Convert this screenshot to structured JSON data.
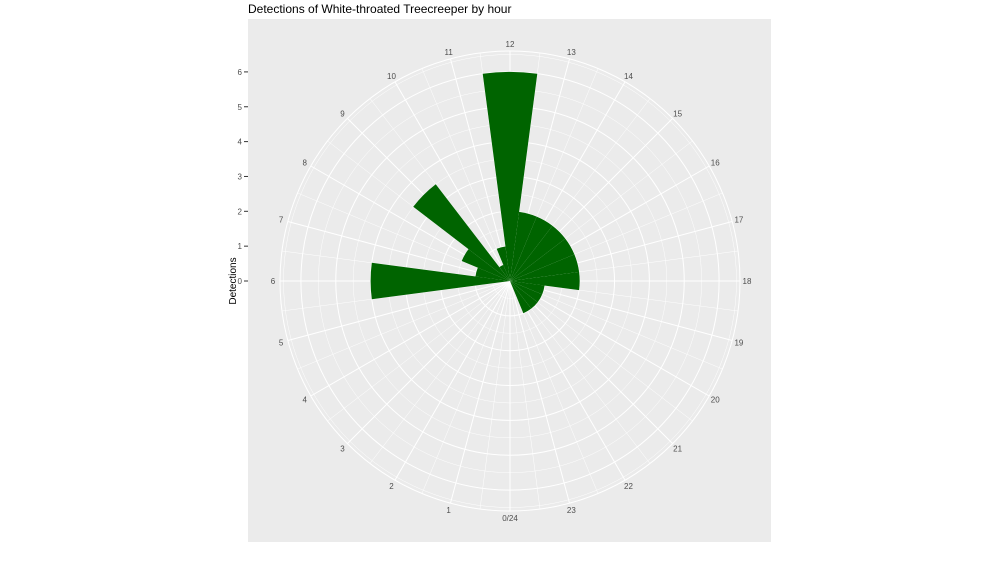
{
  "chart_data": {
    "type": "bar",
    "coord": "polar",
    "title": "Detections of White-throated Treecreeper by hour",
    "xlabel": "",
    "ylabel": "Detections",
    "hours": [
      0,
      1,
      2,
      3,
      4,
      5,
      6,
      7,
      8,
      9,
      10,
      11,
      12,
      13,
      14,
      15,
      16,
      17,
      18,
      19,
      20,
      21,
      22,
      23
    ],
    "hour_labels": [
      "0/24",
      "1",
      "2",
      "3",
      "4",
      "5",
      "6",
      "7",
      "8",
      "9",
      "10",
      "11",
      "12",
      "13",
      "14",
      "15",
      "16",
      "17",
      "18",
      "19",
      "20",
      "21",
      "22",
      "23"
    ],
    "values": [
      0,
      0,
      0,
      0,
      0,
      0,
      4,
      1,
      1.5,
      3.5,
      0.5,
      1,
      6,
      2,
      2,
      2,
      2,
      2,
      2,
      1,
      1,
      1,
      1,
      0
    ],
    "ylim": [
      0,
      6.6
    ],
    "y_ticks": [
      0,
      1,
      2,
      3,
      4,
      5,
      6
    ],
    "y_tick_labels": [
      "0",
      "1",
      "2",
      "3",
      "4",
      "5",
      "6"
    ],
    "grid": true,
    "bar_color": "#006400",
    "panel_color": "#ebebeb",
    "grid_color": "#ffffff"
  }
}
